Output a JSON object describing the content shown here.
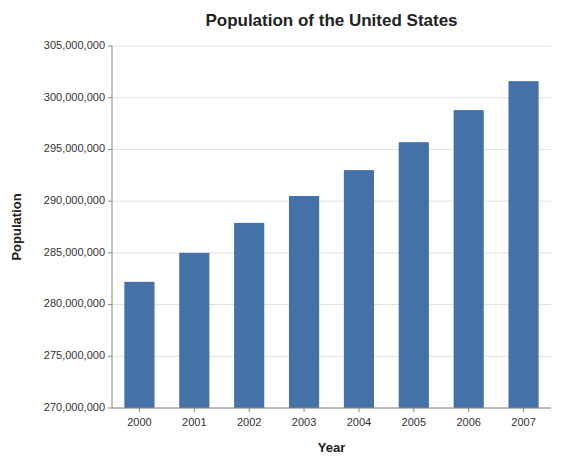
{
  "chart_data": {
    "type": "bar",
    "title": "Population of the United States",
    "xlabel": "Year",
    "ylabel": "Population",
    "categories": [
      "2000",
      "2001",
      "2002",
      "2003",
      "2004",
      "2005",
      "2006",
      "2007"
    ],
    "values": [
      282200000,
      285000000,
      287900000,
      290500000,
      293000000,
      295700000,
      298800000,
      301600000
    ],
    "color": "#4472a8",
    "ylim": [
      270000000,
      305000000
    ],
    "yticks": [
      {
        "value": 270000000,
        "label": "270,000,000"
      },
      {
        "value": 275000000,
        "label": "275,000,000"
      },
      {
        "value": 280000000,
        "label": "280,000,000"
      },
      {
        "value": 285000000,
        "label": "285,000,000"
      },
      {
        "value": 290000000,
        "label": "290,000,000"
      },
      {
        "value": 295000000,
        "label": "295,000,000"
      },
      {
        "value": 300000000,
        "label": "300,000,000"
      },
      {
        "value": 305000000,
        "label": "305,000,000"
      }
    ],
    "grid": true
  }
}
